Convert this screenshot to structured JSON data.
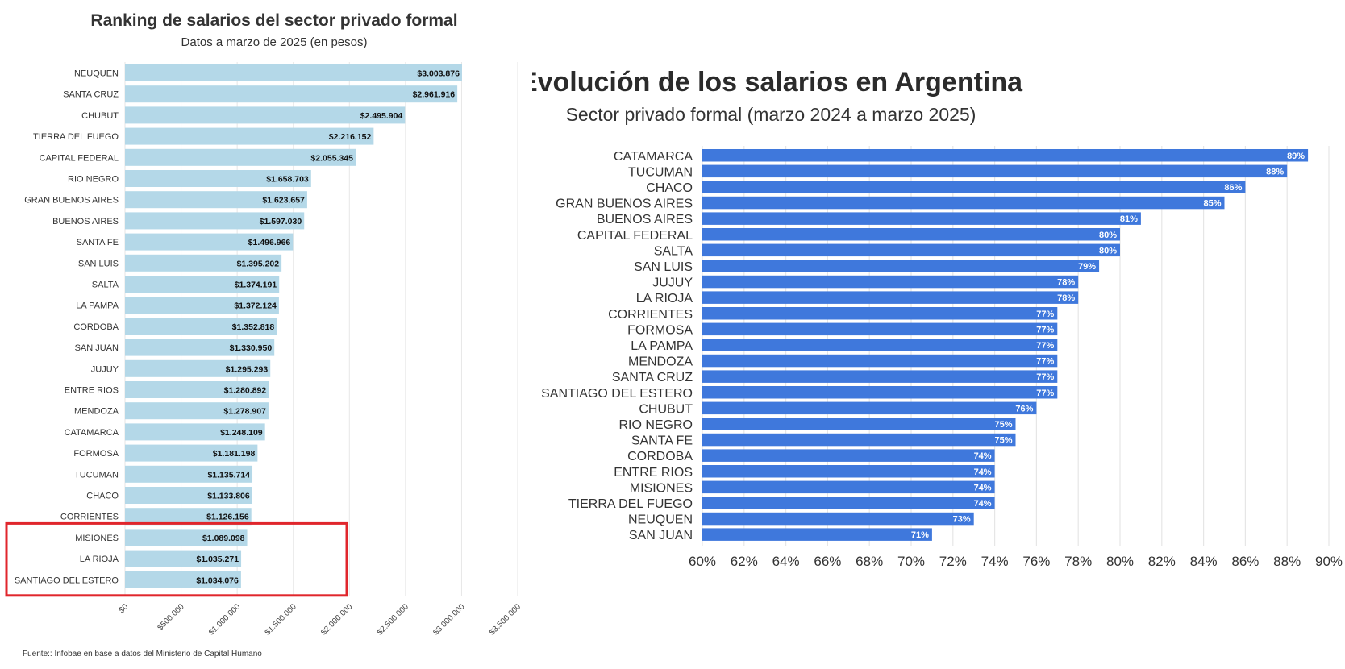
{
  "chart_data": [
    {
      "type": "bar",
      "orientation": "horizontal",
      "title": "Ranking de salarios del sector privado formal",
      "subtitle": "Datos a marzo de 2025 (en pesos)",
      "categories": [
        "NEUQUEN",
        "SANTA CRUZ",
        "CHUBUT",
        "TIERRA DEL FUEGO",
        "CAPITAL FEDERAL",
        "RIO NEGRO",
        "GRAN BUENOS AIRES",
        "BUENOS AIRES",
        "SANTA FE",
        "SAN LUIS",
        "SALTA",
        "LA PAMPA",
        "CORDOBA",
        "SAN JUAN",
        "JUJUY",
        "ENTRE RIOS",
        "MENDOZA",
        "CATAMARCA",
        "FORMOSA",
        "TUCUMAN",
        "CHACO",
        "CORRIENTES",
        "MISIONES",
        "LA RIOJA",
        "SANTIAGO DEL ESTERO"
      ],
      "values": [
        3003876,
        2961916,
        2495904,
        2216152,
        2055345,
        1658703,
        1623657,
        1597030,
        1496966,
        1395202,
        1374191,
        1372124,
        1352818,
        1330950,
        1295293,
        1280892,
        1278907,
        1248109,
        1181198,
        1135714,
        1133806,
        1126156,
        1089098,
        1035271,
        1034076
      ],
      "value_labels": [
        "$3.003.876",
        "$2.961.916",
        "$2.495.904",
        "$2.216.152",
        "$2.055.345",
        "$1.658.703",
        "$1.623.657",
        "$1.597.030",
        "$1.496.966",
        "$1.395.202",
        "$1.374.191",
        "$1.372.124",
        "$1.352.818",
        "$1.330.950",
        "$1.295.293",
        "$1.280.892",
        "$1.278.907",
        "$1.248.109",
        "$1.181.198",
        "$1.135.714",
        "$1.133.806",
        "$1.126.156",
        "$1.089.098",
        "$1.035.271",
        "$1.034.076"
      ],
      "xlim": [
        0,
        3500000
      ],
      "ticks": [
        0,
        500000,
        1000000,
        1500000,
        2000000,
        2500000,
        3000000,
        3500000
      ],
      "tick_labels": [
        "$0",
        "$500.000",
        "$1.000.000",
        "$1.500.000",
        "$2.000.000",
        "$2.500.000",
        "$3.000.000",
        "$3.500.000"
      ],
      "highlighted_categories": [
        "MISIONES",
        "LA RIOJA",
        "SANTIAGO DEL ESTERO"
      ],
      "source": "Fuente:: Infobae en base a datos del Ministerio de Capital Humano",
      "colors": {
        "bar": "#b4d8e8",
        "highlight": "#e0262c",
        "grid": "#e6e6e6"
      }
    },
    {
      "type": "bar",
      "orientation": "horizontal",
      "title": "Evolución de los salarios en Argentina",
      "subtitle": "Sector privado formal (marzo 2024 a marzo 2025)",
      "categories": [
        "CATAMARCA",
        "TUCUMAN",
        "CHACO",
        "GRAN BUENOS AIRES",
        "BUENOS AIRES",
        "CAPITAL FEDERAL",
        "SALTA",
        "SAN LUIS",
        "JUJUY",
        "LA RIOJA",
        "CORRIENTES",
        "FORMOSA",
        "LA PAMPA",
        "MENDOZA",
        "SANTA CRUZ",
        "SANTIAGO DEL ESTERO",
        "CHUBUT",
        "RIO NEGRO",
        "SANTA FE",
        "CORDOBA",
        "ENTRE RIOS",
        "MISIONES",
        "TIERRA DEL FUEGO",
        "NEUQUEN",
        "SAN JUAN"
      ],
      "values": [
        89,
        88,
        86,
        85,
        81,
        80,
        80,
        79,
        78,
        78,
        77,
        77,
        77,
        77,
        77,
        77,
        76,
        75,
        75,
        74,
        74,
        74,
        74,
        73,
        71
      ],
      "value_labels": [
        "89%",
        "88%",
        "86%",
        "85%",
        "81%",
        "80%",
        "80%",
        "79%",
        "78%",
        "78%",
        "77%",
        "77%",
        "77%",
        "77%",
        "77%",
        "77%",
        "76%",
        "75%",
        "75%",
        "74%",
        "74%",
        "74%",
        "74%",
        "73%",
        "71%"
      ],
      "unit": "%",
      "xlim": [
        60,
        90
      ],
      "ticks": [
        60,
        62,
        64,
        66,
        68,
        70,
        72,
        74,
        76,
        78,
        80,
        82,
        84,
        86,
        88,
        90
      ],
      "tick_labels": [
        "60%",
        "62%",
        "64%",
        "66%",
        "68%",
        "70%",
        "72%",
        "74%",
        "76%",
        "78%",
        "80%",
        "82%",
        "84%",
        "86%",
        "88%",
        "90%"
      ],
      "colors": {
        "bar": "#3f78dc",
        "grid": "#e6e6e6"
      }
    }
  ]
}
